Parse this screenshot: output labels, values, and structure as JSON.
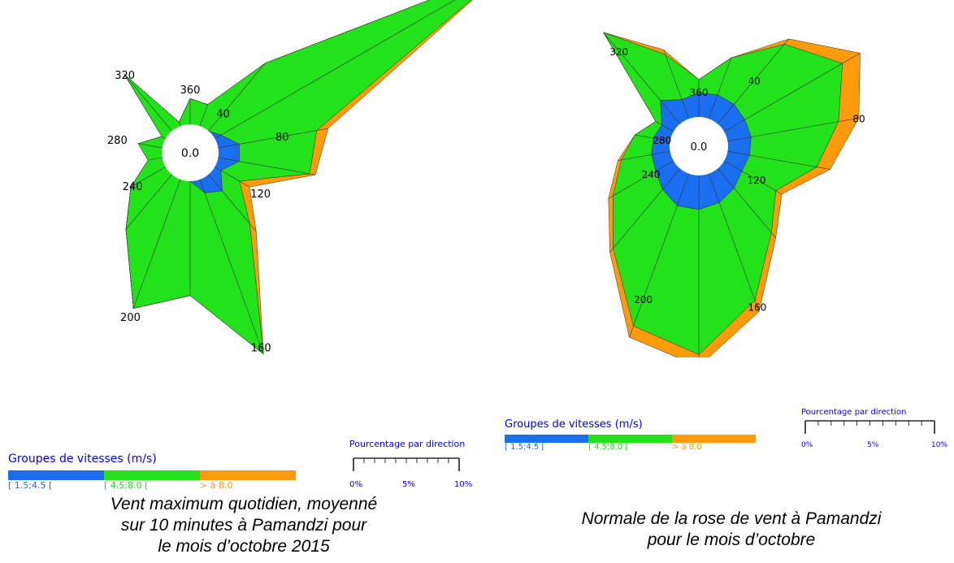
{
  "colors": {
    "low": "#1a6ef0",
    "mid": "#22e21a",
    "high": "#ff9a0a",
    "legend_title": "#0000ff"
  },
  "chart_data": [
    {
      "type": "radar",
      "subtype": "wind_rose",
      "center_label": "0.0",
      "direction_labels": [
        "40",
        "80",
        "120",
        "160",
        "200",
        "240",
        "280",
        "320",
        "360"
      ],
      "legend": {
        "title": "Groupes de vitesses (m/s)",
        "entries": [
          "[ 1.5;4.5 [",
          "[ 4.5;8.0 [",
          "> à 8.0"
        ]
      },
      "scale": {
        "title": "Pourcentage par direction",
        "ticks": [
          "0%",
          "5%",
          "10%"
        ]
      },
      "caption": [
        "Vent maximum quotidien, moyenné",
        "sur 10 minutes à Pamandzi pour",
        "le mois d’octobre 2015"
      ],
      "directions": [
        0,
        20,
        40,
        60,
        80,
        100,
        120,
        140,
        160,
        180,
        200,
        220,
        240,
        260,
        280,
        300,
        320,
        340
      ],
      "series": [
        {
          "name": "[ 1.5;4.5 [",
          "values": [
            0,
            0,
            0,
            0.5,
            1.5,
            1.5,
            0.5,
            1.5,
            1.0,
            0,
            0,
            0,
            0,
            0,
            0,
            0,
            0,
            0
          ]
        },
        {
          "name": "[ 4.5;8.0 [",
          "values": [
            1.8,
            1.6,
            6.2,
            23.0,
            5.5,
            5.0,
            1.5,
            3.0,
            12.0,
            8.0,
            9.6,
            5.0,
            2.8,
            1.0,
            1.7,
            0.3,
            5.2,
            0.3
          ]
        },
        {
          "name": "> à 8.0",
          "values": [
            0,
            0,
            0,
            0,
            0.8,
            0.4,
            0.8,
            0.7,
            0,
            0,
            0,
            0,
            0,
            0,
            0,
            0,
            0,
            0
          ]
        }
      ]
    },
    {
      "type": "radar",
      "subtype": "wind_rose",
      "center_label": "0.0",
      "direction_labels": [
        "40",
        "80",
        "120",
        "160",
        "200",
        "240",
        "280",
        "320",
        "360"
      ],
      "legend": {
        "title": "Groupes de vitesses (m/s)",
        "entries": [
          "[ 1.5;4.5 [",
          "[ 4.5;8.0 [",
          "> à 8.0"
        ]
      },
      "scale": {
        "title": "Pourcentage par direction",
        "ticks": [
          "0%",
          "5%",
          "10%"
        ]
      },
      "caption": [
        "Normale de la rose de vent à Pamandzi",
        "pour le mois d’octobre"
      ],
      "directions": [
        0,
        20,
        40,
        60,
        80,
        100,
        120,
        140,
        160,
        180,
        200,
        220,
        240,
        260,
        280,
        300,
        320,
        340
      ],
      "series": [
        {
          "name": "[ 1.5;4.5 [",
          "values": [
            1.4,
            1.5,
            1.5,
            1.4,
            1.4,
            1.3,
            1.2,
            1.5,
            1.8,
            2.0,
            2.0,
            1.6,
            1.2,
            1.1,
            1.0,
            0.8,
            1.8,
            1.2
          ]
        },
        {
          "name": "[ 4.5;8.0 [",
          "values": [
            0.8,
            2.3,
            4.6,
            6.6,
            5.2,
            4.0,
            2.3,
            3.4,
            6.1,
            8.5,
            7.5,
            4.5,
            2.9,
            1.8,
            1.1,
            0.4,
            5.2,
            2.8
          ]
        },
        {
          "name": "> à 8.0",
          "values": [
            0,
            0,
            0.4,
            1.2,
            1.2,
            0.8,
            0.4,
            0.4,
            0.7,
            0.7,
            0.7,
            0.3,
            0.3,
            0.2,
            0,
            0,
            0,
            0.3
          ]
        }
      ]
    }
  ]
}
